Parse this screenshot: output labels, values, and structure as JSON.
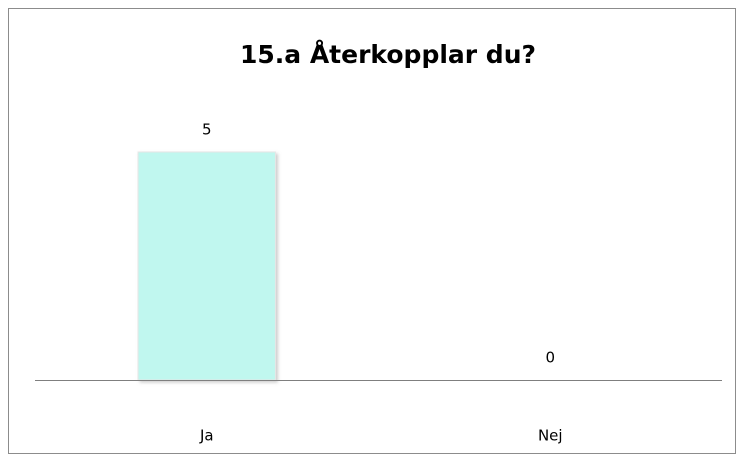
{
  "chart_data": {
    "type": "bar",
    "title": "15.a Återkopplar du?",
    "categories": [
      "Ja",
      "Nej"
    ],
    "values": [
      5,
      0
    ],
    "color": "#c0f7ef"
  }
}
